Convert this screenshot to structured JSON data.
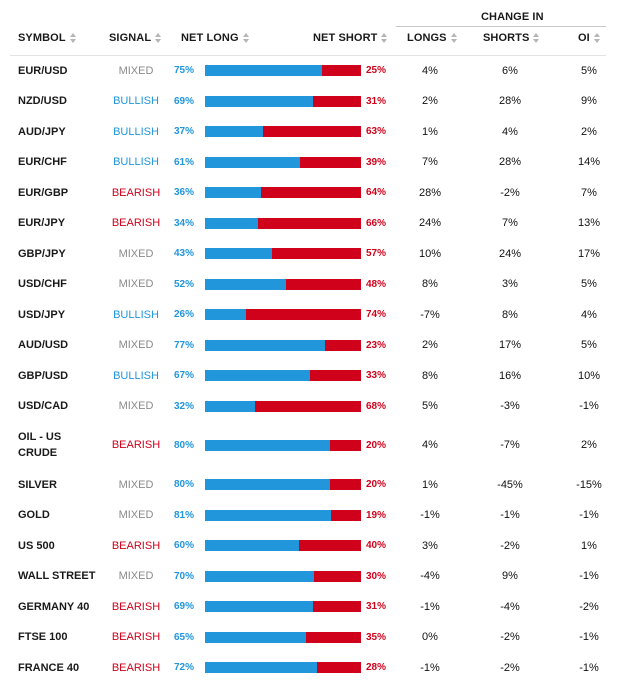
{
  "colors": {
    "long": "#2196db",
    "short": "#d0021b",
    "mixed": "#8a8a8a",
    "bullish": "#2196db",
    "bearish": "#d0021b"
  },
  "header": {
    "group_label": "CHANGE IN",
    "columns": {
      "symbol": "SYMBOL",
      "signal": "SIGNAL",
      "net_long": "NET LONG",
      "net_short": "NET SHORT",
      "longs": "LONGS",
      "shorts": "SHORTS",
      "oi": "OI"
    },
    "sort_icon": "sort-arrows-icon"
  },
  "rows": [
    {
      "symbol": "EUR/USD",
      "signal": "MIXED",
      "net_long": "75%",
      "net_short": "25%",
      "longs": "4%",
      "shorts": "6%",
      "oi": "5%",
      "long_pct": 75
    },
    {
      "symbol": "NZD/USD",
      "signal": "BULLISH",
      "net_long": "69%",
      "net_short": "31%",
      "longs": "2%",
      "shorts": "28%",
      "oi": "9%",
      "long_pct": 69
    },
    {
      "symbol": "AUD/JPY",
      "signal": "BULLISH",
      "net_long": "37%",
      "net_short": "63%",
      "longs": "1%",
      "shorts": "4%",
      "oi": "2%",
      "long_pct": 37
    },
    {
      "symbol": "EUR/CHF",
      "signal": "BULLISH",
      "net_long": "61%",
      "net_short": "39%",
      "longs": "7%",
      "shorts": "28%",
      "oi": "14%",
      "long_pct": 61
    },
    {
      "symbol": "EUR/GBP",
      "signal": "BEARISH",
      "net_long": "36%",
      "net_short": "64%",
      "longs": "28%",
      "shorts": "-2%",
      "oi": "7%",
      "long_pct": 36
    },
    {
      "symbol": "EUR/JPY",
      "signal": "BEARISH",
      "net_long": "34%",
      "net_short": "66%",
      "longs": "24%",
      "shorts": "7%",
      "oi": "13%",
      "long_pct": 34
    },
    {
      "symbol": "GBP/JPY",
      "signal": "MIXED",
      "net_long": "43%",
      "net_short": "57%",
      "longs": "10%",
      "shorts": "24%",
      "oi": "17%",
      "long_pct": 43
    },
    {
      "symbol": "USD/CHF",
      "signal": "MIXED",
      "net_long": "52%",
      "net_short": "48%",
      "longs": "8%",
      "shorts": "3%",
      "oi": "5%",
      "long_pct": 52
    },
    {
      "symbol": "USD/JPY",
      "signal": "BULLISH",
      "net_long": "26%",
      "net_short": "74%",
      "longs": "-7%",
      "shorts": "8%",
      "oi": "4%",
      "long_pct": 26
    },
    {
      "symbol": "AUD/USD",
      "signal": "MIXED",
      "net_long": "77%",
      "net_short": "23%",
      "longs": "2%",
      "shorts": "17%",
      "oi": "5%",
      "long_pct": 77
    },
    {
      "symbol": "GBP/USD",
      "signal": "BULLISH",
      "net_long": "67%",
      "net_short": "33%",
      "longs": "8%",
      "shorts": "16%",
      "oi": "10%",
      "long_pct": 67
    },
    {
      "symbol": "USD/CAD",
      "signal": "MIXED",
      "net_long": "32%",
      "net_short": "68%",
      "longs": "5%",
      "shorts": "-3%",
      "oi": "-1%",
      "long_pct": 32
    },
    {
      "symbol": "OIL - US CRUDE",
      "signal": "BEARISH",
      "net_long": "80%",
      "net_short": "20%",
      "longs": "4%",
      "shorts": "-7%",
      "oi": "2%",
      "long_pct": 80
    },
    {
      "symbol": "SILVER",
      "signal": "MIXED",
      "net_long": "80%",
      "net_short": "20%",
      "longs": "1%",
      "shorts": "-45%",
      "oi": "-15%",
      "long_pct": 80
    },
    {
      "symbol": "GOLD",
      "signal": "MIXED",
      "net_long": "81%",
      "net_short": "19%",
      "longs": "-1%",
      "shorts": "-1%",
      "oi": "-1%",
      "long_pct": 81
    },
    {
      "symbol": "US 500",
      "signal": "BEARISH",
      "net_long": "60%",
      "net_short": "40%",
      "longs": "3%",
      "shorts": "-2%",
      "oi": "1%",
      "long_pct": 60
    },
    {
      "symbol": "WALL STREET",
      "signal": "MIXED",
      "net_long": "70%",
      "net_short": "30%",
      "longs": "-4%",
      "shorts": "9%",
      "oi": "-1%",
      "long_pct": 70
    },
    {
      "symbol": "GERMANY 40",
      "signal": "BEARISH",
      "net_long": "69%",
      "net_short": "31%",
      "longs": "-1%",
      "shorts": "-4%",
      "oi": "-2%",
      "long_pct": 69
    },
    {
      "symbol": "FTSE 100",
      "signal": "BEARISH",
      "net_long": "65%",
      "net_short": "35%",
      "longs": "0%",
      "shorts": "-2%",
      "oi": "-1%",
      "long_pct": 65
    },
    {
      "symbol": "FRANCE 40",
      "signal": "BEARISH",
      "net_long": "72%",
      "net_short": "28%",
      "longs": "-1%",
      "shorts": "-2%",
      "oi": "-1%",
      "long_pct": 72
    }
  ]
}
